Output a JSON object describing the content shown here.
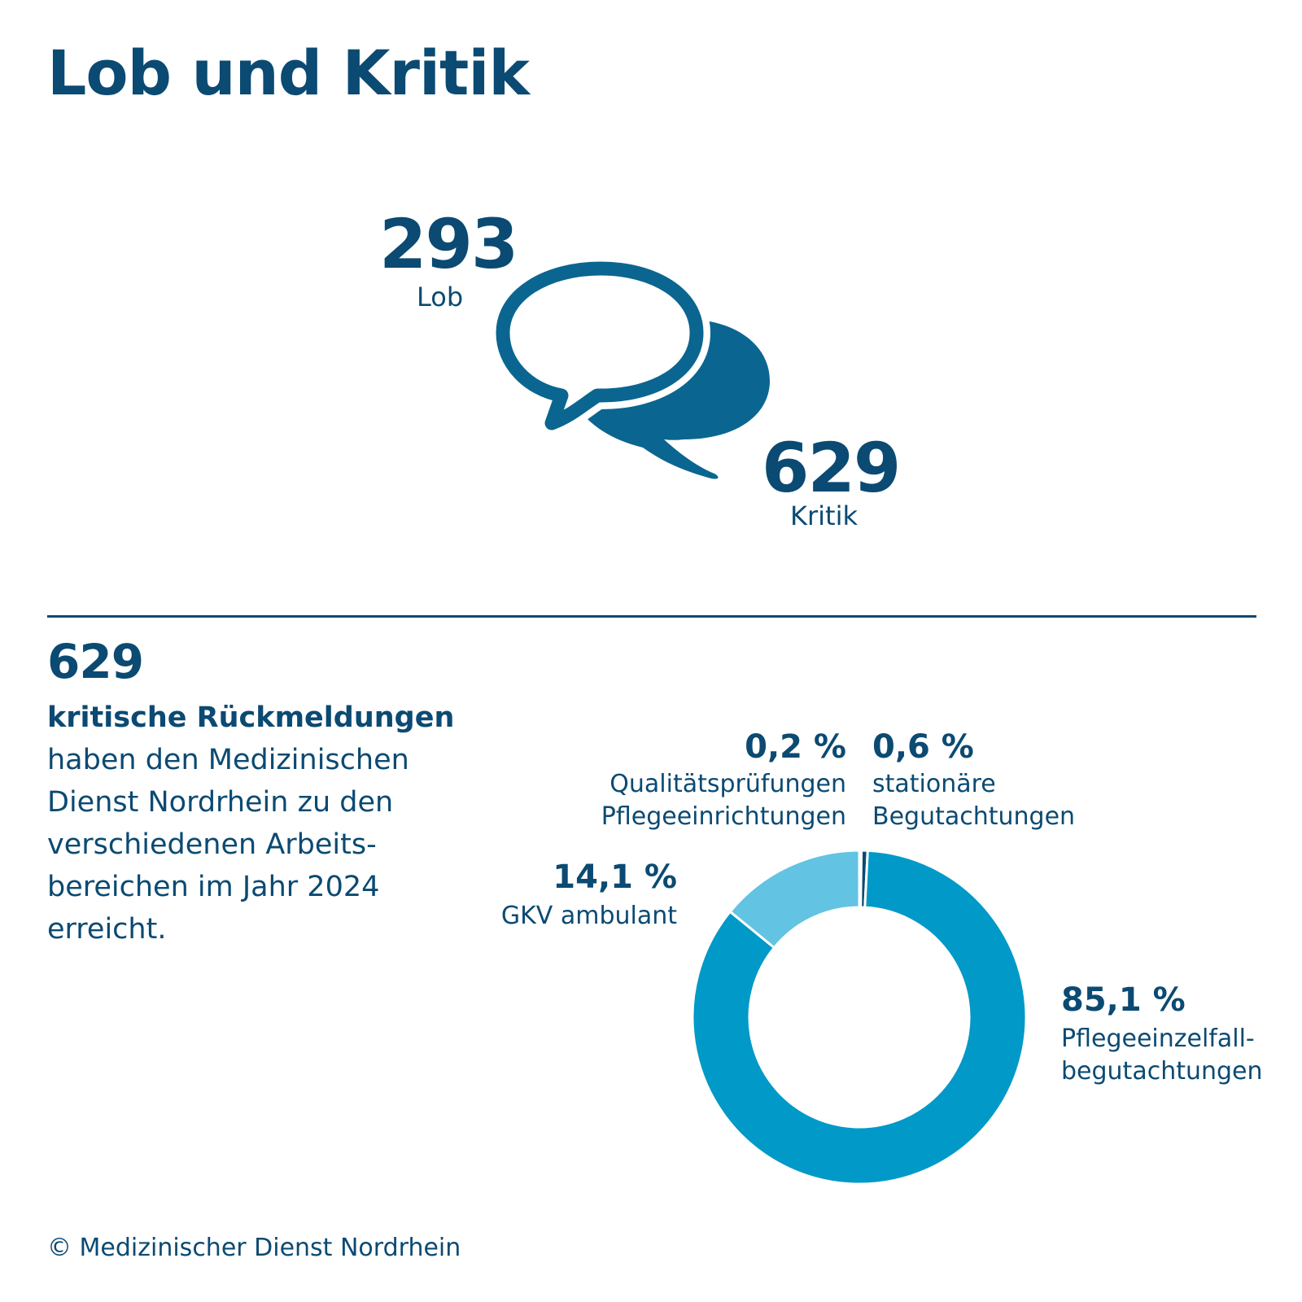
{
  "title": "Lob und Kritik",
  "lob": {
    "value": "293",
    "label": "Lob"
  },
  "kritik": {
    "value": "629",
    "label": "Kritik"
  },
  "summary": {
    "number": "629",
    "bold": "kritische Rückmeldungen",
    "lines": [
      "haben den Medizinischen",
      "Dienst Nordrhein zu den",
      "verschiedenen Arbeits-",
      "bereichen im Jahr 2024",
      "erreicht."
    ]
  },
  "chart_data": {
    "type": "pie",
    "variant": "donut",
    "title": "",
    "slices": [
      {
        "value": 0.2,
        "pct_label": "0,2 %",
        "label_lines": [
          "Qualitätsprüfungen",
          "Pflegeeinrichtungen"
        ],
        "color": "#0b4a72"
      },
      {
        "value": 0.6,
        "pct_label": "0,6 %",
        "label_lines": [
          "stationäre",
          "Begutachtungen"
        ],
        "color": "#0b4a72"
      },
      {
        "value": 85.1,
        "pct_label": "85,1 %",
        "label_lines": [
          "Pflegeeinzelfall-",
          "begutachtungen"
        ],
        "color": "#0099c8"
      },
      {
        "value": 14.1,
        "pct_label": "14,1 %",
        "label_lines": [
          "GKV ambulant"
        ],
        "color": "#62c3e3"
      }
    ]
  },
  "colors": {
    "dark": "#0b4a72",
    "mid": "#0a6690",
    "accent": "#0099c8",
    "light": "#62c3e3"
  },
  "icons": [
    "speech-bubbles-icon"
  ],
  "footer": "© Medizinischer Dienst Nordrhein"
}
